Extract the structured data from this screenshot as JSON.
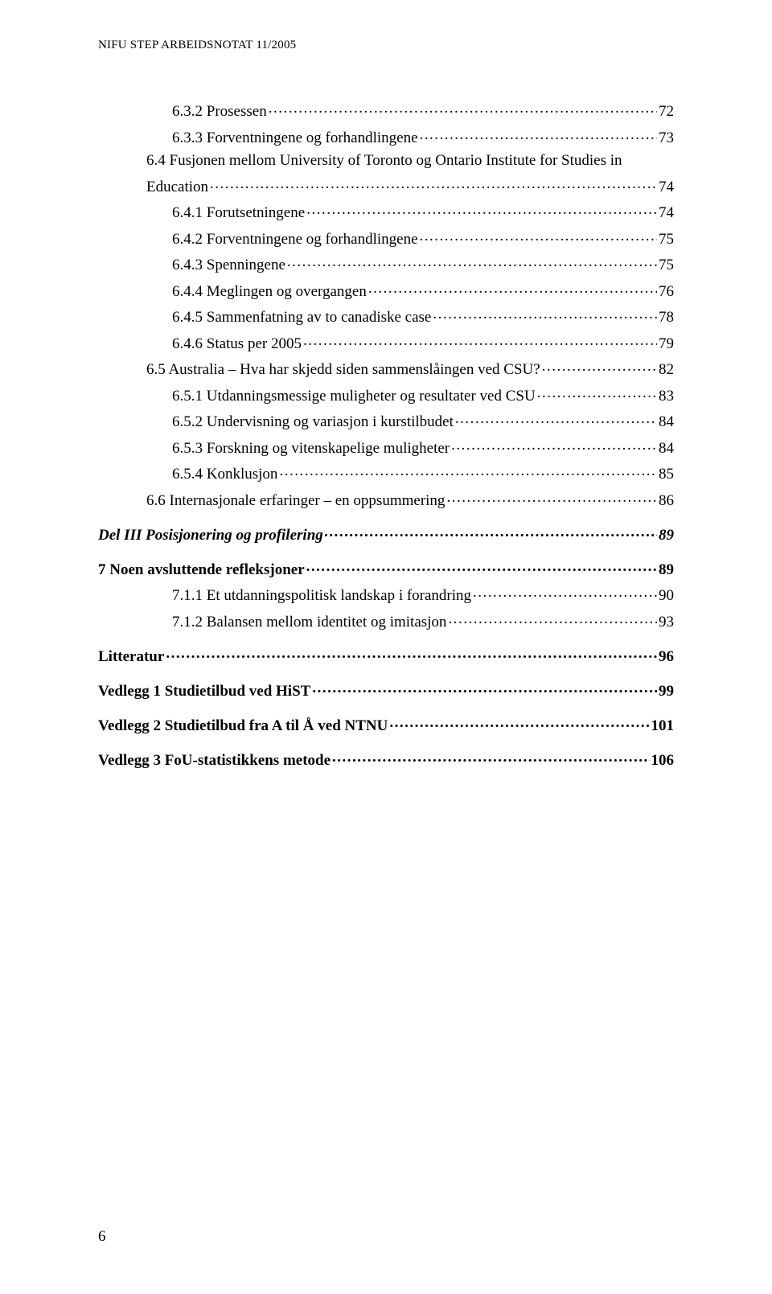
{
  "header": "NIFU STEP ARBEIDSNOTAT 11/2005",
  "page_number": "6",
  "toc": [
    {
      "label": "6.3.2 Prosessen",
      "page": "72",
      "indent": 3,
      "bold": false,
      "italic": false,
      "gap": false
    },
    {
      "label": "6.3.3 Forventningene og forhandlingene",
      "page": "73",
      "indent": 3,
      "bold": false,
      "italic": false,
      "gap": false
    },
    {
      "label": "6.4 Fusjonen mellom University of Toronto og Ontario Institute for Studies in",
      "page": "",
      "indent": 2,
      "bold": false,
      "italic": false,
      "gap": false,
      "nodots": true
    },
    {
      "label": "Education",
      "page": "74",
      "indent": 2,
      "bold": false,
      "italic": false,
      "gap": false
    },
    {
      "label": "6.4.1 Forutsetningene",
      "page": "74",
      "indent": 3,
      "bold": false,
      "italic": false,
      "gap": false
    },
    {
      "label": "6.4.2 Forventningene og forhandlingene",
      "page": "75",
      "indent": 3,
      "bold": false,
      "italic": false,
      "gap": false
    },
    {
      "label": "6.4.3 Spenningene",
      "page": "75",
      "indent": 3,
      "bold": false,
      "italic": false,
      "gap": false
    },
    {
      "label": "6.4.4 Meglingen og overgangen",
      "page": "76",
      "indent": 3,
      "bold": false,
      "italic": false,
      "gap": false
    },
    {
      "label": "6.4.5 Sammenfatning av to canadiske case",
      "page": "78",
      "indent": 3,
      "bold": false,
      "italic": false,
      "gap": false
    },
    {
      "label": "6.4.6 Status per 2005",
      "page": "79",
      "indent": 3,
      "bold": false,
      "italic": false,
      "gap": false
    },
    {
      "label": "6.5 Australia – Hva har skjedd siden sammenslåingen ved CSU? ",
      "page": "82",
      "indent": 2,
      "bold": false,
      "italic": false,
      "gap": false
    },
    {
      "label": "6.5.1 Utdanningsmessige muligheter og resultater ved CSU",
      "page": "83",
      "indent": 3,
      "bold": false,
      "italic": false,
      "gap": false
    },
    {
      "label": "6.5.2 Undervisning og variasjon i kurstilbudet",
      "page": "84",
      "indent": 3,
      "bold": false,
      "italic": false,
      "gap": false
    },
    {
      "label": "6.5.3 Forskning og vitenskapelige muligheter",
      "page": "84",
      "indent": 3,
      "bold": false,
      "italic": false,
      "gap": false
    },
    {
      "label": "6.5.4 Konklusjon",
      "page": "85",
      "indent": 3,
      "bold": false,
      "italic": false,
      "gap": false
    },
    {
      "label": "6.6 Internasjonale erfaringer – en oppsummering",
      "page": "86",
      "indent": 2,
      "bold": false,
      "italic": false,
      "gap": false
    },
    {
      "label": "Del III Posisjonering og profilering",
      "page": "89",
      "indent": 0,
      "bold": true,
      "italic": true,
      "gap": true
    },
    {
      "label": "7   Noen avsluttende refleksjoner",
      "page": "89",
      "indent": 0,
      "bold": true,
      "italic": false,
      "gap": true
    },
    {
      "label": "7.1.1 Et utdanningspolitisk landskap i forandring",
      "page": "90",
      "indent": 3,
      "bold": false,
      "italic": false,
      "gap": false
    },
    {
      "label": "7.1.2 Balansen mellom identitet og imitasjon",
      "page": "93",
      "indent": 3,
      "bold": false,
      "italic": false,
      "gap": false
    },
    {
      "label": "Litteratur",
      "page": "96",
      "indent": 0,
      "bold": true,
      "italic": false,
      "gap": true
    },
    {
      "label": "Vedlegg 1 Studietilbud ved HiST",
      "page": "99",
      "indent": 0,
      "bold": true,
      "italic": false,
      "gap": true
    },
    {
      "label": "Vedlegg 2 Studietilbud fra A til Å ved NTNU",
      "page": "101",
      "indent": 0,
      "bold": true,
      "italic": false,
      "gap": true
    },
    {
      "label": "Vedlegg 3 FoU-statistikkens metode",
      "page": "106",
      "indent": 0,
      "bold": true,
      "italic": false,
      "gap": true
    }
  ]
}
